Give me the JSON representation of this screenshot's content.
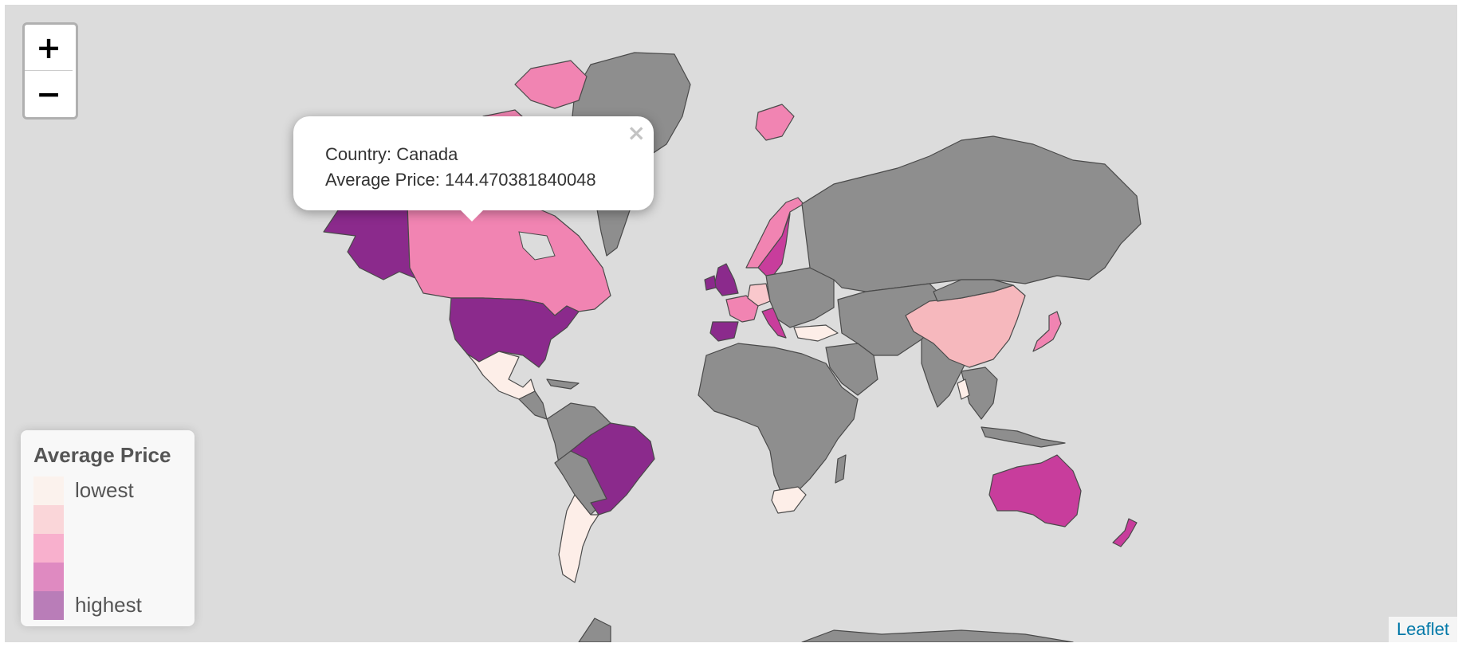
{
  "zoom_control": {
    "zoom_in": "+",
    "zoom_out": "−"
  },
  "popup": {
    "close": "×",
    "line1": "Country: Canada",
    "line2": "Average Price: 144.470381840048"
  },
  "legend": {
    "title": "Average Price",
    "items": [
      {
        "label": "lowest",
        "color": "#feebe2"
      },
      {
        "label": "",
        "color": "#fbb4b9"
      },
      {
        "label": "",
        "color": "#f768a1"
      },
      {
        "label": "",
        "color": "#c51b8a"
      },
      {
        "label": "highest",
        "color": "#7a0177"
      }
    ]
  },
  "attribution": "Leaflet",
  "colors": {
    "map_background": "#dcdcdc",
    "no_data": "#8e8e8e",
    "lowest": "#fdeee8",
    "low": "#f9c8cc",
    "mid": "#f184b2",
    "high": "#c83d9c",
    "highest": "#8b2a8c"
  }
}
